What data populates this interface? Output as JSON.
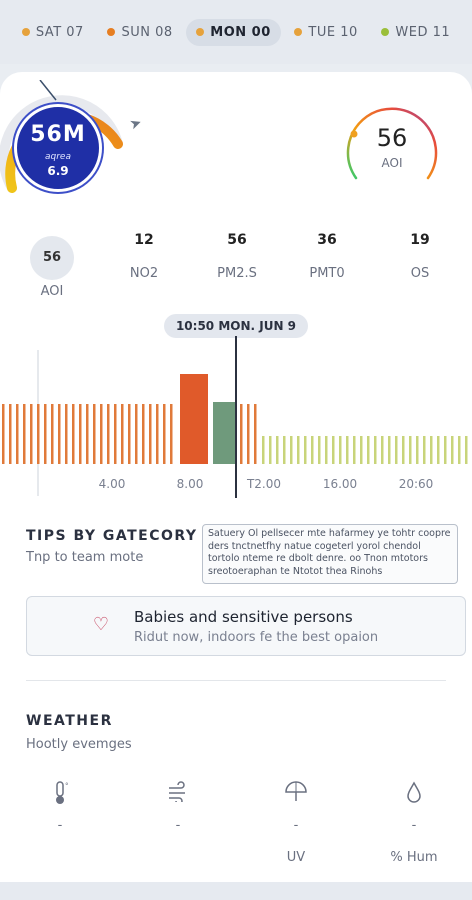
{
  "days": [
    {
      "label": "SAT 07",
      "color": "#e6a23c",
      "active": false
    },
    {
      "label": "SUN 08",
      "color": "#e67e22",
      "active": false
    },
    {
      "label": "MON 00",
      "color": "#e6a23c",
      "active": true
    },
    {
      "label": "TUE 10",
      "color": "#e6a23c",
      "active": false
    },
    {
      "label": "WED 11",
      "color": "#9bbf3a",
      "active": false
    }
  ],
  "left_gauge": {
    "value": "56M",
    "sub": "aqrea",
    "sub2": "6.9",
    "level": 0.62
  },
  "right_gauge": {
    "value": "56",
    "label": "AOI",
    "level": 0.56
  },
  "pollutants": [
    {
      "value": "56",
      "name": "AOI"
    },
    {
      "value": "12",
      "name": "NO2"
    },
    {
      "value": "56",
      "name": "PM2.S"
    },
    {
      "value": "36",
      "name": "PMT0"
    },
    {
      "value": "19",
      "name": "OS"
    }
  ],
  "timeline": {
    "badge": "10:50 MON. JUN 9",
    "ticks": [
      "4.00",
      "8.00",
      "T2.00",
      "16.00",
      "20:60"
    ]
  },
  "tips": {
    "title": "TIPS BY GATECORY",
    "subtitle": "Tnp to team mote",
    "info": "Satuery Ol pellsecer mte hafarmey ye tohtr coopre ders tnctnetfhy natue cogeterl yorol chendol tortolo nteme re dbolt denre. oo Tnon mtotors sreotoeraphan te Ntotot thea Rinohs",
    "rec_title": "Babies and sensitive persons",
    "rec_desc": "Ridut now, indoors fe the best opaion"
  },
  "weather": {
    "title": "WEATHER",
    "subtitle": "Hootly evemges",
    "items": [
      {
        "icon": "thermometer-icon",
        "value": "-",
        "label": ""
      },
      {
        "icon": "wind-icon",
        "value": "-",
        "label": ""
      },
      {
        "icon": "umbrella-icon",
        "value": "-",
        "label": "UV"
      },
      {
        "icon": "droplet-icon",
        "value": "-",
        "label": "% Hum"
      }
    ]
  }
}
